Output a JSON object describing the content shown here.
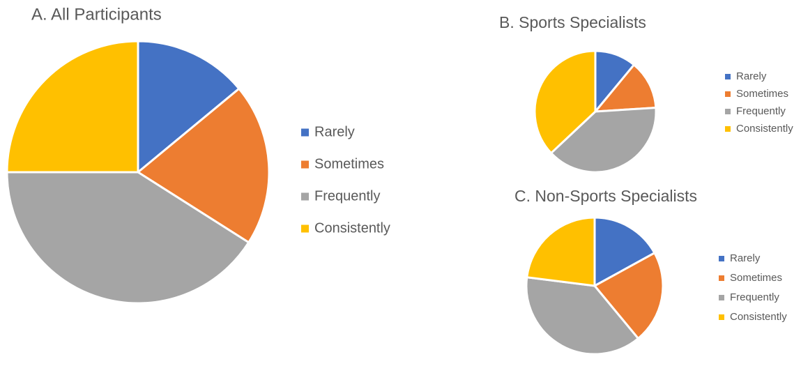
{
  "chart_data": [
    {
      "type": "pie",
      "title": "A. All Participants",
      "categories": [
        "Rarely",
        "Sometimes",
        "Frequently",
        "Consistently"
      ],
      "values": [
        14,
        20,
        41,
        25
      ],
      "colors": [
        "#4472c4",
        "#ed7d31",
        "#a5a5a5",
        "#ffc000"
      ],
      "legend": "right"
    },
    {
      "type": "pie",
      "title": "B. Sports Specialists",
      "categories": [
        "Rarely",
        "Sometimes",
        "Frequently",
        "Consistently"
      ],
      "values": [
        11,
        13,
        39,
        37
      ],
      "colors": [
        "#4472c4",
        "#ed7d31",
        "#a5a5a5",
        "#ffc000"
      ],
      "legend": "right"
    },
    {
      "type": "pie",
      "title": "C. Non-Sports Specialists",
      "categories": [
        "Rarely",
        "Sometimes",
        "Frequently",
        "Consistently"
      ],
      "values": [
        17,
        22,
        38,
        23
      ],
      "colors": [
        "#4472c4",
        "#ed7d31",
        "#a5a5a5",
        "#ffc000"
      ],
      "legend": "right"
    }
  ]
}
